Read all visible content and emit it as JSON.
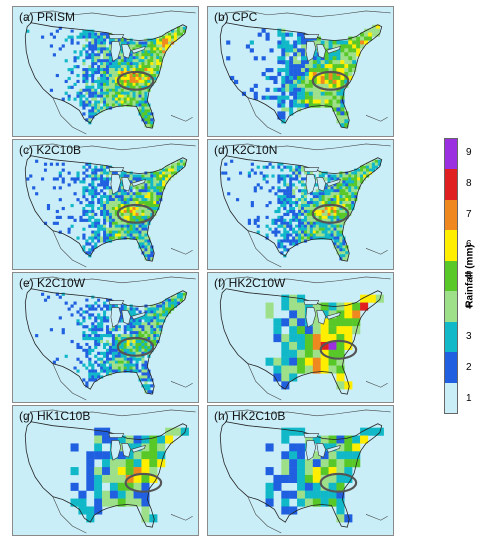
{
  "panels": [
    {
      "id": "a",
      "label": "(a) PRISM",
      "res": "fine",
      "intensity": 1.0
    },
    {
      "id": "b",
      "label": "(b) CPC",
      "res": "medium",
      "intensity": 1.0
    },
    {
      "id": "c",
      "label": "(c) K2C10B",
      "res": "fine",
      "intensity": 0.85
    },
    {
      "id": "d",
      "label": "(d) K2C10N",
      "res": "fine",
      "intensity": 0.85
    },
    {
      "id": "e",
      "label": "(e) K2C10W",
      "res": "fine",
      "intensity": 0.7
    },
    {
      "id": "f",
      "label": "(f) HK2C10W",
      "res": "coarse",
      "intensity": 1.2
    },
    {
      "id": "g",
      "label": "(g) HK1C10B",
      "res": "coarse",
      "intensity": 0.9
    },
    {
      "id": "h",
      "label": "(h) HK2C10B",
      "res": "coarse",
      "intensity": 0.85
    }
  ],
  "colorbar": {
    "title": "Rainfall (mm)",
    "ticks": [
      "9",
      "8",
      "7",
      "6",
      "5",
      "4",
      "3",
      "2",
      "1"
    ],
    "colors": [
      "#9b30e0",
      "#e02020",
      "#f08820",
      "#ffee00",
      "#58c828",
      "#9ee08a",
      "#10b8c8",
      "#2060e0",
      "#c9eef8"
    ]
  },
  "ocean_color": "#c9eef8",
  "ellipse_color": "#555555"
}
